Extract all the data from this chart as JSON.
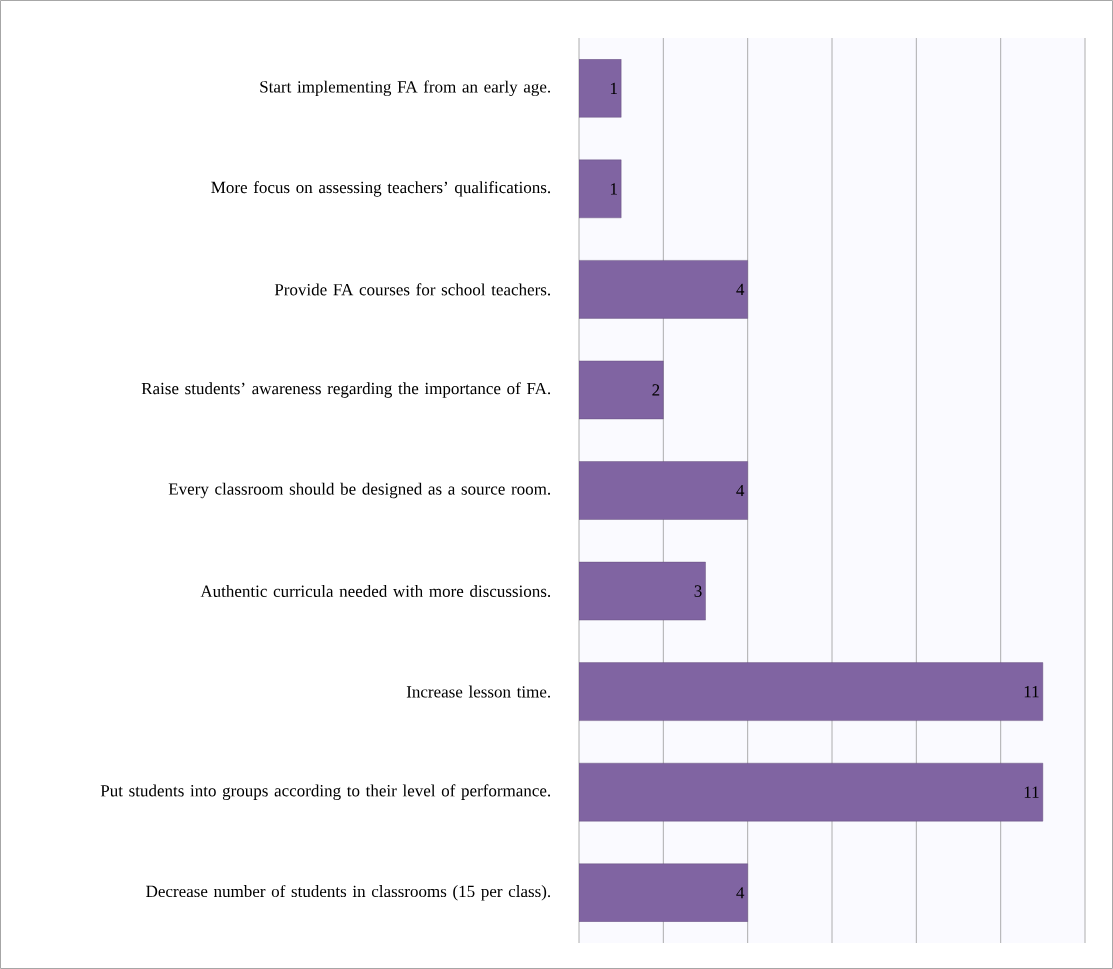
{
  "chart_data": {
    "type": "bar",
    "orientation": "horizontal",
    "categories": [
      "Start implementing FA from an early age.",
      "More focus on assessing teachers’ qualifications.",
      "Provide FA courses for school teachers.",
      "Raise students’ awareness regarding the importance of FA.",
      "Every classroom should be designed as a source room.",
      "Authentic curricula needed with more discussions.",
      "Increase lesson time.",
      "Put students into groups according to their level of performance.",
      "Decrease number of students in classrooms (15 per class)."
    ],
    "values": [
      1,
      1,
      4,
      2,
      4,
      3,
      11,
      11,
      4
    ],
    "color": "#8064a2",
    "xlim": [
      0,
      12
    ],
    "xticks": [
      {
        "value": 0,
        "label": null
      },
      {
        "value": 2,
        "label": null
      },
      {
        "value": 4,
        "label": null
      },
      {
        "value": 6,
        "label": null
      },
      {
        "value": 8,
        "label": null
      },
      {
        "value": 10,
        "label": null
      },
      {
        "value": 12,
        "label": null
      }
    ],
    "tick_labels": "y",
    "grid": "x",
    "data_labels": true
  }
}
